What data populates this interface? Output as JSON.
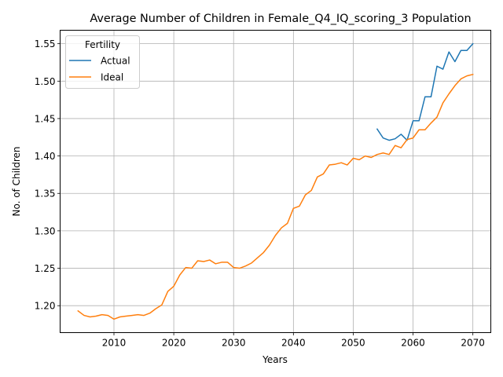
{
  "chart_data": {
    "type": "line",
    "title": "Average Number of Children in Female_Q4_IQ_scoring_3 Population",
    "xlabel": "Years",
    "ylabel": "No. of Children",
    "xlim": [
      2001,
      2073
    ],
    "ylim": [
      1.164,
      1.568
    ],
    "xticks": [
      2010,
      2020,
      2030,
      2040,
      2050,
      2060,
      2070
    ],
    "yticks": [
      1.2,
      1.25,
      1.3,
      1.35,
      1.4,
      1.45,
      1.5,
      1.55
    ],
    "grid": true,
    "legend": {
      "title": "Fertility",
      "position": "top-left"
    },
    "series": [
      {
        "name": "Actual",
        "color": "#1f77b4",
        "x": [
          2054,
          2055,
          2056,
          2057,
          2058,
          2059,
          2060,
          2061,
          2062,
          2063,
          2064,
          2065,
          2066,
          2067,
          2068,
          2069,
          2070
        ],
        "values": [
          1.436,
          1.424,
          1.421,
          1.423,
          1.429,
          1.421,
          1.447,
          1.447,
          1.479,
          1.479,
          1.52,
          1.516,
          1.539,
          1.526,
          1.541,
          1.541,
          1.55
        ]
      },
      {
        "name": "Ideal",
        "color": "#ff7f0e",
        "x": [
          2004,
          2005,
          2006,
          2007,
          2008,
          2009,
          2010,
          2011,
          2012,
          2013,
          2014,
          2015,
          2016,
          2017,
          2018,
          2019,
          2020,
          2021,
          2022,
          2023,
          2024,
          2025,
          2026,
          2027,
          2028,
          2029,
          2030,
          2031,
          2032,
          2033,
          2034,
          2035,
          2036,
          2037,
          2038,
          2039,
          2040,
          2041,
          2042,
          2043,
          2044,
          2045,
          2046,
          2047,
          2048,
          2049,
          2050,
          2051,
          2052,
          2053,
          2054,
          2055,
          2056,
          2057,
          2058,
          2059,
          2060,
          2061,
          2062,
          2063,
          2064,
          2065,
          2066,
          2067,
          2068,
          2069,
          2070
        ],
        "values": [
          1.193,
          1.187,
          1.185,
          1.186,
          1.188,
          1.187,
          1.182,
          1.185,
          1.186,
          1.187,
          1.188,
          1.187,
          1.19,
          1.196,
          1.201,
          1.219,
          1.226,
          1.241,
          1.251,
          1.25,
          1.26,
          1.259,
          1.261,
          1.256,
          1.258,
          1.258,
          1.251,
          1.25,
          1.253,
          1.257,
          1.264,
          1.271,
          1.281,
          1.294,
          1.304,
          1.31,
          1.33,
          1.333,
          1.348,
          1.354,
          1.372,
          1.376,
          1.388,
          1.389,
          1.391,
          1.388,
          1.397,
          1.395,
          1.4,
          1.398,
          1.402,
          1.404,
          1.402,
          1.414,
          1.411,
          1.422,
          1.424,
          1.435,
          1.435,
          1.444,
          1.452,
          1.471,
          1.483,
          1.494,
          1.503,
          1.507,
          1.509
        ]
      }
    ]
  }
}
